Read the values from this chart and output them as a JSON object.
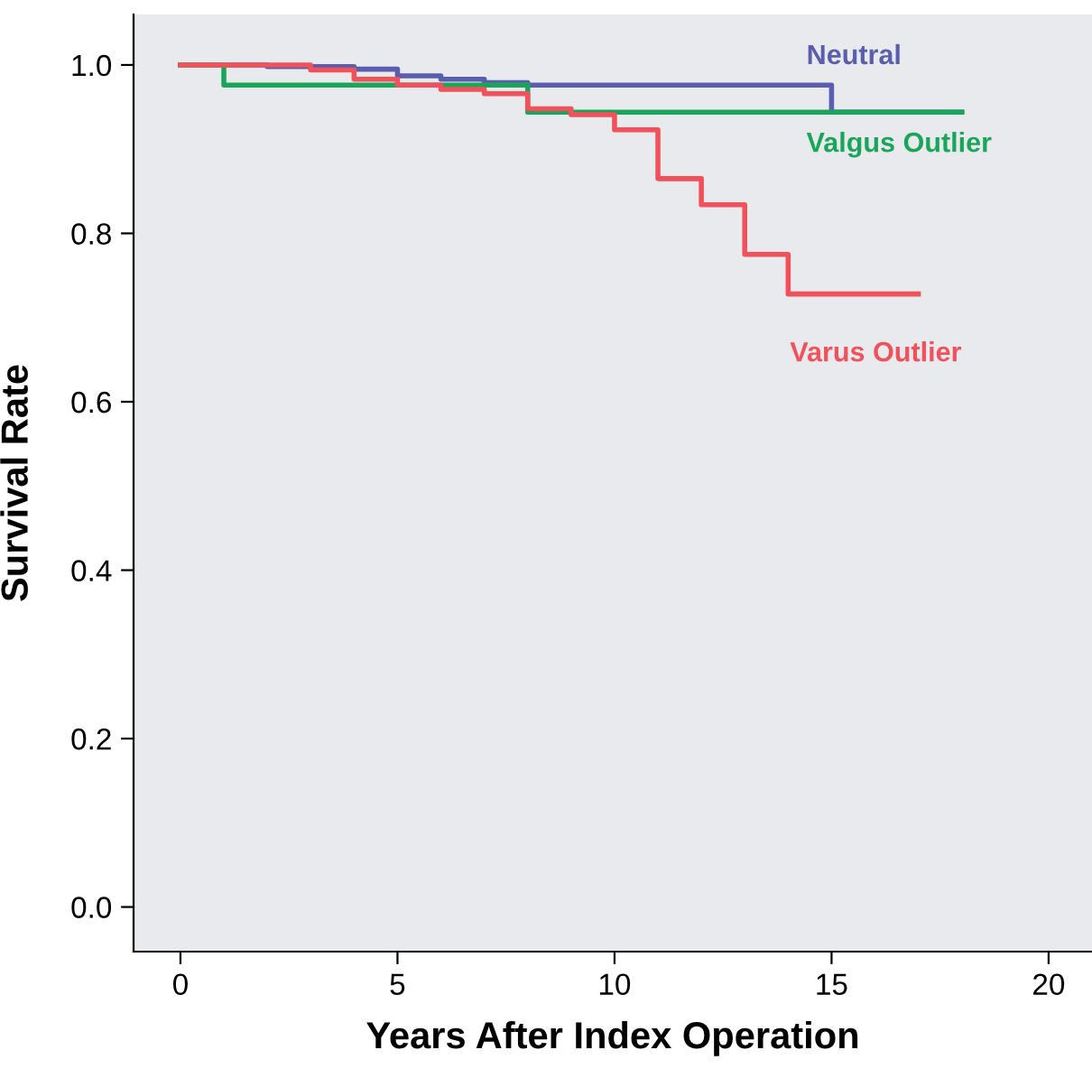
{
  "chart_data": {
    "type": "step",
    "xlabel": "Years After Index Operation",
    "ylabel": "Survival Rate",
    "xlim": [
      -1.08,
      21
    ],
    "ylim": [
      -0.053,
      1.06
    ],
    "xticks": [
      0,
      5,
      10,
      15,
      20
    ],
    "yticks": [
      {
        "value": 0,
        "label": "0.0"
      },
      {
        "value": 0.2,
        "label": "0.2"
      },
      {
        "value": 0.4,
        "label": "0.4"
      },
      {
        "value": 0.6,
        "label": "0.6"
      },
      {
        "value": 0.8,
        "label": "0.8"
      },
      {
        "value": 1,
        "label": "1.0"
      }
    ],
    "grid": false,
    "legend": false,
    "series": [
      {
        "name": "Neutral",
        "color": "#5b5eae",
        "x": [
          0,
          2,
          4,
          5,
          6,
          7,
          8,
          15,
          18
        ],
        "values": [
          1.0,
          0.998,
          0.995,
          0.987,
          0.983,
          0.979,
          0.976,
          0.944,
          0.944
        ]
      },
      {
        "name": "Valgus Outlier",
        "color": "#1aa65a",
        "x": [
          0,
          1,
          8,
          18
        ],
        "values": [
          1.0,
          0.976,
          0.944,
          0.944
        ]
      },
      {
        "name": "Varus Outlier",
        "color": "#f0515a",
        "x": [
          0,
          3,
          4,
          5,
          6,
          7,
          8,
          9,
          10,
          11,
          12,
          13,
          14,
          17
        ],
        "values": [
          1.0,
          0.994,
          0.983,
          0.976,
          0.971,
          0.966,
          0.948,
          0.941,
          0.923,
          0.865,
          0.834,
          0.775,
          0.728,
          0.728
        ]
      }
    ]
  }
}
